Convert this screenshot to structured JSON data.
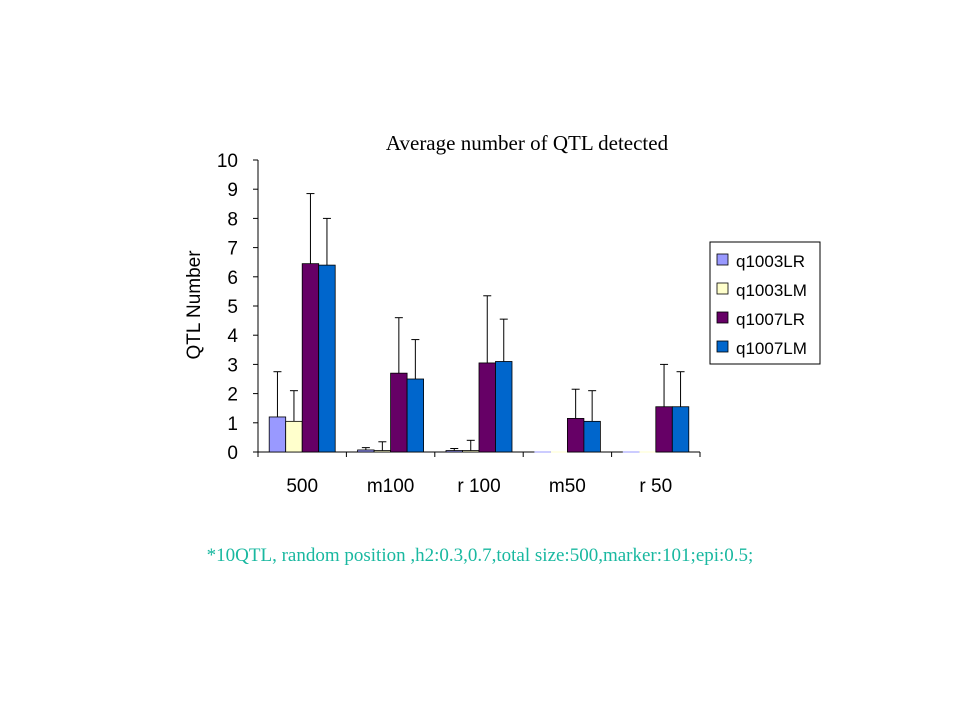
{
  "chart_data": {
    "type": "bar",
    "title": "Average number of QTL detected",
    "xlabel": "",
    "ylabel": "QTL Number",
    "ylim": [
      0,
      10
    ],
    "yticks": [
      "0",
      "1",
      "2",
      "3",
      "4",
      "5",
      "6",
      "7",
      "8",
      "9",
      "10"
    ],
    "categories": [
      "500",
      "m100",
      "r 100",
      "m50",
      "r 50"
    ],
    "series": [
      {
        "name": "q1003LR",
        "color": "#9999ff",
        "values": [
          1.2,
          0.07,
          0.05,
          0,
          0
        ],
        "errors": [
          1.55,
          0.08,
          0.07,
          0,
          0
        ]
      },
      {
        "name": "q1003LM",
        "color": "#ffffcc",
        "values": [
          1.05,
          0.05,
          0.05,
          0,
          0
        ],
        "errors": [
          1.05,
          0.3,
          0.35,
          0,
          0
        ]
      },
      {
        "name": "q1007LR",
        "color": "#660066",
        "values": [
          6.45,
          2.7,
          3.05,
          1.15,
          1.55
        ],
        "errors": [
          2.4,
          1.9,
          2.3,
          1.0,
          1.45
        ]
      },
      {
        "name": "q1007LM",
        "color": "#0066cc",
        "values": [
          6.4,
          2.5,
          3.1,
          1.05,
          1.55
        ],
        "errors": [
          1.6,
          1.35,
          1.45,
          1.05,
          1.2
        ]
      }
    ],
    "legend_position": "right",
    "grid": false,
    "error_bars": true
  },
  "footnote": "*10QTL, random position ,h2:0.3,0.7,total size:500,marker:101;epi:0.5;"
}
